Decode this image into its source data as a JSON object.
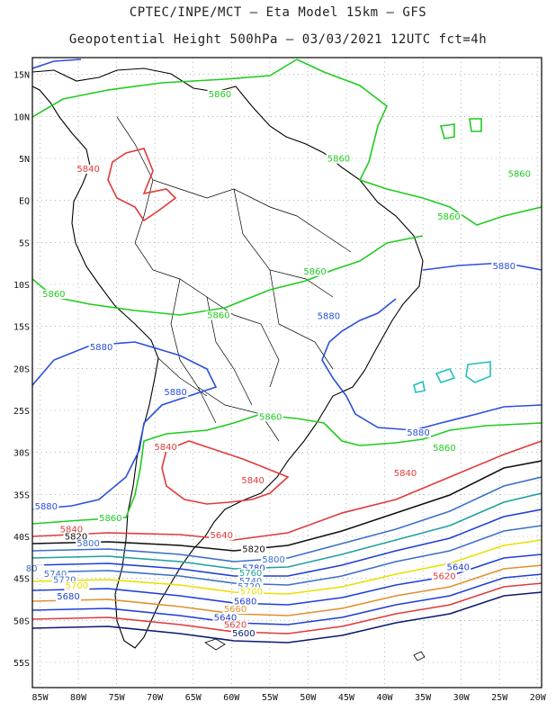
{
  "header": {
    "line1": "CPTEC/INPE/MCT –  Eta Model 15km – GFS",
    "line2": "Geopotential Height 500hPa – 03/03/2021 12UTC fct=4h"
  },
  "axes": {
    "lat_labels": [
      "15N",
      "10N",
      "5N",
      "EQ",
      "5S",
      "10S",
      "15S",
      "20S",
      "25S",
      "30S",
      "35S",
      "40S",
      "45S",
      "50S",
      "55S"
    ],
    "lon_labels": [
      "85W",
      "80W",
      "75W",
      "70W",
      "65W",
      "60W",
      "55W",
      "50W",
      "45W",
      "40W",
      "35W",
      "30W",
      "25W",
      "20W"
    ],
    "grid": "dotted"
  },
  "contour_labels": [
    {
      "text": "5860",
      "color": "#1fcc1f",
      "lon": -61.5,
      "lat": 12.3
    },
    {
      "text": "5840",
      "color": "#e03a3a",
      "lon": -78.7,
      "lat": 3.4
    },
    {
      "text": "5860",
      "color": "#1fcc1f",
      "lon": -46.0,
      "lat": 4.6
    },
    {
      "text": "5860",
      "color": "#1fcc1f",
      "lon": -22.4,
      "lat": 2.8
    },
    {
      "text": "5860",
      "color": "#1fcc1f",
      "lon": -31.6,
      "lat": -2.3
    },
    {
      "text": "5880",
      "color": "#2a4fe0",
      "lon": -24.4,
      "lat": -8.2
    },
    {
      "text": "5860",
      "color": "#1fcc1f",
      "lon": -49.1,
      "lat": -8.8
    },
    {
      "text": "5860",
      "color": "#1fcc1f",
      "lon": -83.2,
      "lat": -11.5
    },
    {
      "text": "5860",
      "color": "#1fcc1f",
      "lon": -61.7,
      "lat": -14.0
    },
    {
      "text": "5880",
      "color": "#2a4fe0",
      "lon": -47.3,
      "lat": -14.1
    },
    {
      "text": "5880",
      "color": "#2a4fe0",
      "lon": -77.0,
      "lat": -17.8
    },
    {
      "text": "5880",
      "color": "#2a4fe0",
      "lon": -67.3,
      "lat": -23.2
    },
    {
      "text": "5860",
      "color": "#1fcc1f",
      "lon": -54.9,
      "lat": -26.1
    },
    {
      "text": "5880",
      "color": "#2a4fe0",
      "lon": -35.6,
      "lat": -28.0
    },
    {
      "text": "5860",
      "color": "#1fcc1f",
      "lon": -32.2,
      "lat": -29.8
    },
    {
      "text": "5840",
      "color": "#e03a3a",
      "lon": -68.6,
      "lat": -29.7
    },
    {
      "text": "5840",
      "color": "#e03a3a",
      "lon": -37.3,
      "lat": -32.8
    },
    {
      "text": "5840",
      "color": "#e03a3a",
      "lon": -57.2,
      "lat": -33.7
    },
    {
      "text": "5880",
      "color": "#2a4fe0",
      "lon": -84.2,
      "lat": -36.8
    },
    {
      "text": "5860",
      "color": "#1fcc1f",
      "lon": -75.8,
      "lat": -38.2
    },
    {
      "text": "5840",
      "color": "#e03a3a",
      "lon": -80.9,
      "lat": -39.5
    },
    {
      "text": "5820",
      "color": "#111111",
      "lon": -80.3,
      "lat": -40.4
    },
    {
      "text": "5800",
      "color": "#3b6fc8",
      "lon": -78.7,
      "lat": -41.2
    },
    {
      "text": "5640",
      "color": "#e03a3a",
      "lon": -61.3,
      "lat": -40.2
    },
    {
      "text": "5820",
      "color": "#111111",
      "lon": -57.1,
      "lat": -41.9
    },
    {
      "text": "5800",
      "color": "#3b6fc8",
      "lon": -54.5,
      "lat": -43.1
    },
    {
      "text": "5780",
      "color": "#1f3fd6",
      "lon": -57.1,
      "lat": -44.1
    },
    {
      "text": "5760",
      "color": "#20a0a0",
      "lon": -57.5,
      "lat": -44.7
    },
    {
      "text": "5740",
      "color": "#3b6fc8",
      "lon": -57.5,
      "lat": -45.7
    },
    {
      "text": "5720",
      "color": "#3b6fc8",
      "lon": -57.7,
      "lat": -46.3
    },
    {
      "text": "5700",
      "color": "#e8e000",
      "lon": -57.4,
      "lat": -46.9
    },
    {
      "text": "5680",
      "color": "#1f3fd6",
      "lon": -58.2,
      "lat": -48.1
    },
    {
      "text": "5660",
      "color": "#e09030",
      "lon": -59.5,
      "lat": -49.0
    },
    {
      "text": "5640",
      "color": "#1f3fd6",
      "lon": -60.8,
      "lat": -50.0
    },
    {
      "text": "5620",
      "color": "#e03a3a",
      "lon": -59.5,
      "lat": -50.9
    },
    {
      "text": "5600",
      "color": "#0a1a70",
      "lon": -58.4,
      "lat": -51.9
    },
    {
      "text": "5640",
      "color": "#1f3fd6",
      "lon": -30.4,
      "lat": -44.0
    },
    {
      "text": "5620",
      "color": "#e03a3a",
      "lon": -32.2,
      "lat": -45.1
    },
    {
      "text": "80",
      "color": "#3b6fc8",
      "lon": -86.1,
      "lat": -44.2
    },
    {
      "text": "5740",
      "color": "#3b6fc8",
      "lon": -83.0,
      "lat": -44.8
    },
    {
      "text": "5720",
      "color": "#3b6fc8",
      "lon": -81.8,
      "lat": -45.5
    },
    {
      "text": "5700",
      "color": "#e8e000",
      "lon": -80.2,
      "lat": -46.2
    },
    {
      "text": "5680",
      "color": "#1f3fd6",
      "lon": -81.3,
      "lat": -47.5
    }
  ]
}
